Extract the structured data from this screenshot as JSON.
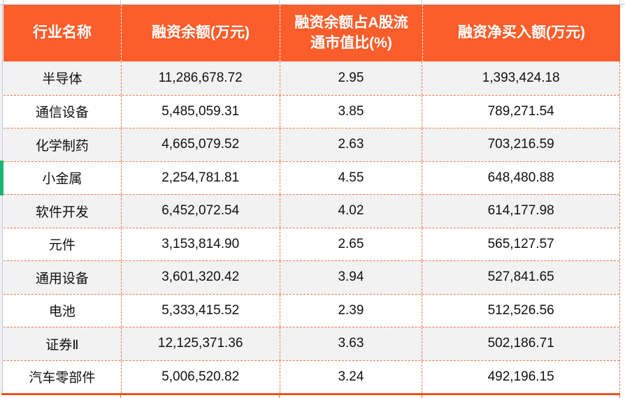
{
  "colors": {
    "header_bg": "#FB5D2B",
    "header_text": "#FFFFFF",
    "grid_dash": "#F0764B",
    "bottom_line": "#EB551B",
    "shaded_row": "#F2F2F2",
    "sheet_line": "#B9C0D5",
    "indicator_green": "#1BB673",
    "cell_text": "#111111"
  },
  "table": {
    "columns": [
      {
        "label": "行业名称"
      },
      {
        "label": "融资余额(万元)"
      },
      {
        "label": "融资余额占A股流通市值比(%)"
      },
      {
        "label": "融资净买入额(万元)"
      }
    ],
    "rows": [
      [
        "半导体",
        "11,286,678.72",
        "2.95",
        "1,393,424.18"
      ],
      [
        "通信设备",
        "5,485,059.31",
        "3.85",
        "789,271.54"
      ],
      [
        "化学制药",
        "4,665,079.52",
        "2.63",
        "703,216.59"
      ],
      [
        "小金属",
        "2,254,781.81",
        "4.55",
        "648,480.88"
      ],
      [
        "软件开发",
        "6,452,072.54",
        "4.02",
        "614,177.98"
      ],
      [
        "元件",
        "3,153,814.90",
        "2.65",
        "565,127.57"
      ],
      [
        "通用设备",
        "3,601,320.42",
        "3.94",
        "527,841.65"
      ],
      [
        "电池",
        "5,333,415.52",
        "2.39",
        "512,526.56"
      ],
      [
        "证券Ⅱ",
        "12,125,371.36",
        "3.63",
        "502,186.71"
      ],
      [
        "汽车零部件",
        "5,006,520.82",
        "3.24",
        "492,196.15"
      ]
    ]
  }
}
